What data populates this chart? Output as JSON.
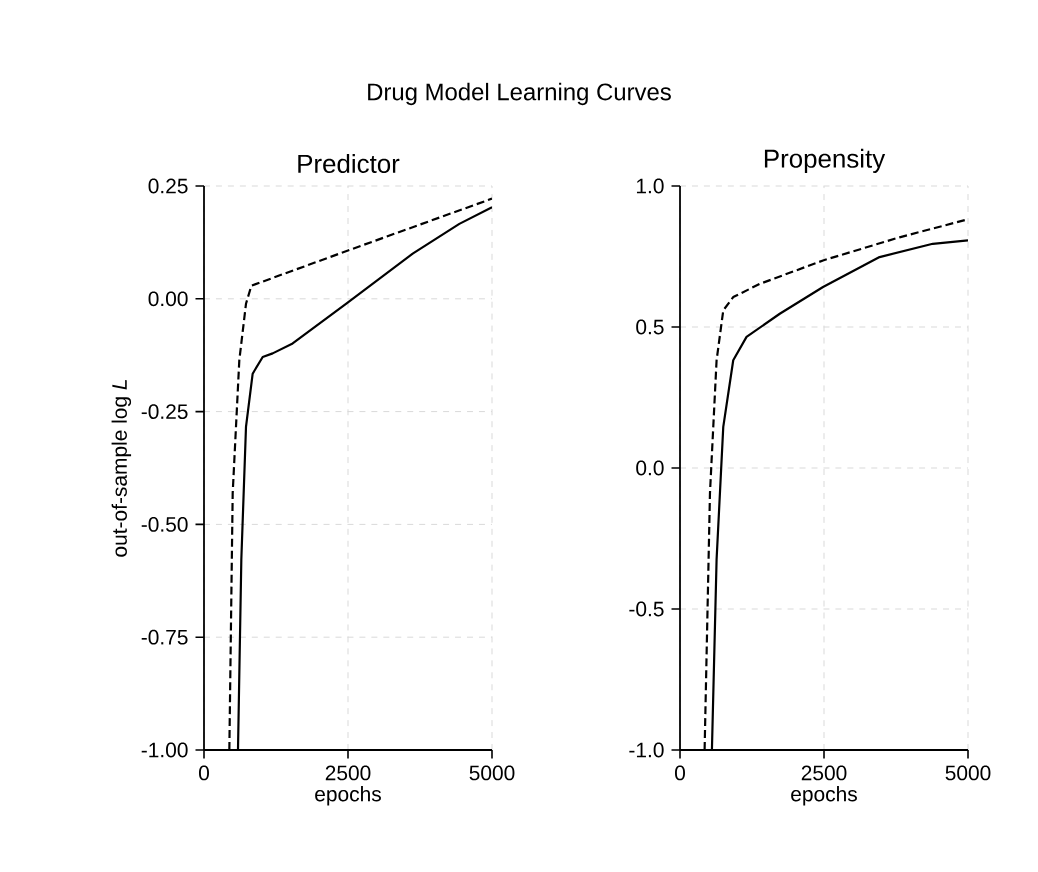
{
  "chart_data": [
    {
      "type": "line",
      "title": "Predictor",
      "ylabel": "out-of-sample log *L*",
      "xlabel": "epochs",
      "annotations": [
        "Drug Model Learning Curves"
      ],
      "xlim": [
        0,
        5000
      ],
      "ylim": [
        -1.0,
        0.25
      ],
      "xticks": [
        0,
        2500,
        5000
      ],
      "yticks": [
        {
          "value": -1.0,
          "label": "-1.00"
        },
        {
          "value": -0.75,
          "label": "-0.75"
        },
        {
          "value": -0.5,
          "label": "-0.50"
        },
        {
          "value": -0.25,
          "label": "-0.25"
        },
        {
          "value": 0,
          "label": "0.00"
        },
        0.25
      ],
      "grid": true,
      "marker": "none",
      "series": [
        {
          "color": "#000000",
          "line_style": "dashed",
          "x": [
            440,
            498,
            613,
            729,
            822,
            2500,
            5000
          ],
          "values": [
            -1.0,
            -0.431,
            -0.136,
            -0.011,
            0.029,
            0.107,
            0.222
          ]
        },
        {
          "color": "#000000",
          "line_style": "solid",
          "x": [
            590,
            648,
            729,
            845,
            1019,
            1192,
            1539,
            2465,
            3623,
            4433,
            5000
          ],
          "values": [
            -1.0,
            -0.578,
            -0.284,
            -0.166,
            -0.129,
            -0.121,
            -0.099,
            -0.011,
            0.1,
            0.166,
            0.203
          ]
        }
      ]
    },
    {
      "type": "line",
      "title": "Propensity",
      "xlabel": "epochs",
      "xlim": [
        0,
        5000
      ],
      "ylim": [
        -1.0,
        1.0
      ],
      "xticks": [
        0,
        2500,
        5000
      ],
      "yticks": [
        {
          "value": -1.0,
          "label": "-1.0"
        },
        -0.5,
        {
          "value": 0,
          "label": "0.0"
        },
        0.5,
        {
          "value": 1.0,
          "label": "1.0"
        }
      ],
      "grid": true,
      "marker": "none",
      "series": [
        {
          "color": "#000000",
          "line_style": "dashed",
          "x": [
            427,
            520,
            635,
            751,
            924,
            1386,
            2483,
            3811,
            5000
          ],
          "values": [
            -1.0,
            -0.09,
            0.382,
            0.559,
            0.606,
            0.653,
            0.736,
            0.818,
            0.882
          ]
        },
        {
          "color": "#000000",
          "line_style": "solid",
          "x": [
            554,
            635,
            751,
            924,
            1155,
            1732,
            2483,
            3464,
            4388,
            5000
          ],
          "values": [
            -1.0,
            -0.325,
            0.146,
            0.382,
            0.465,
            0.547,
            0.642,
            0.748,
            0.795,
            0.807
          ]
        }
      ]
    }
  ]
}
